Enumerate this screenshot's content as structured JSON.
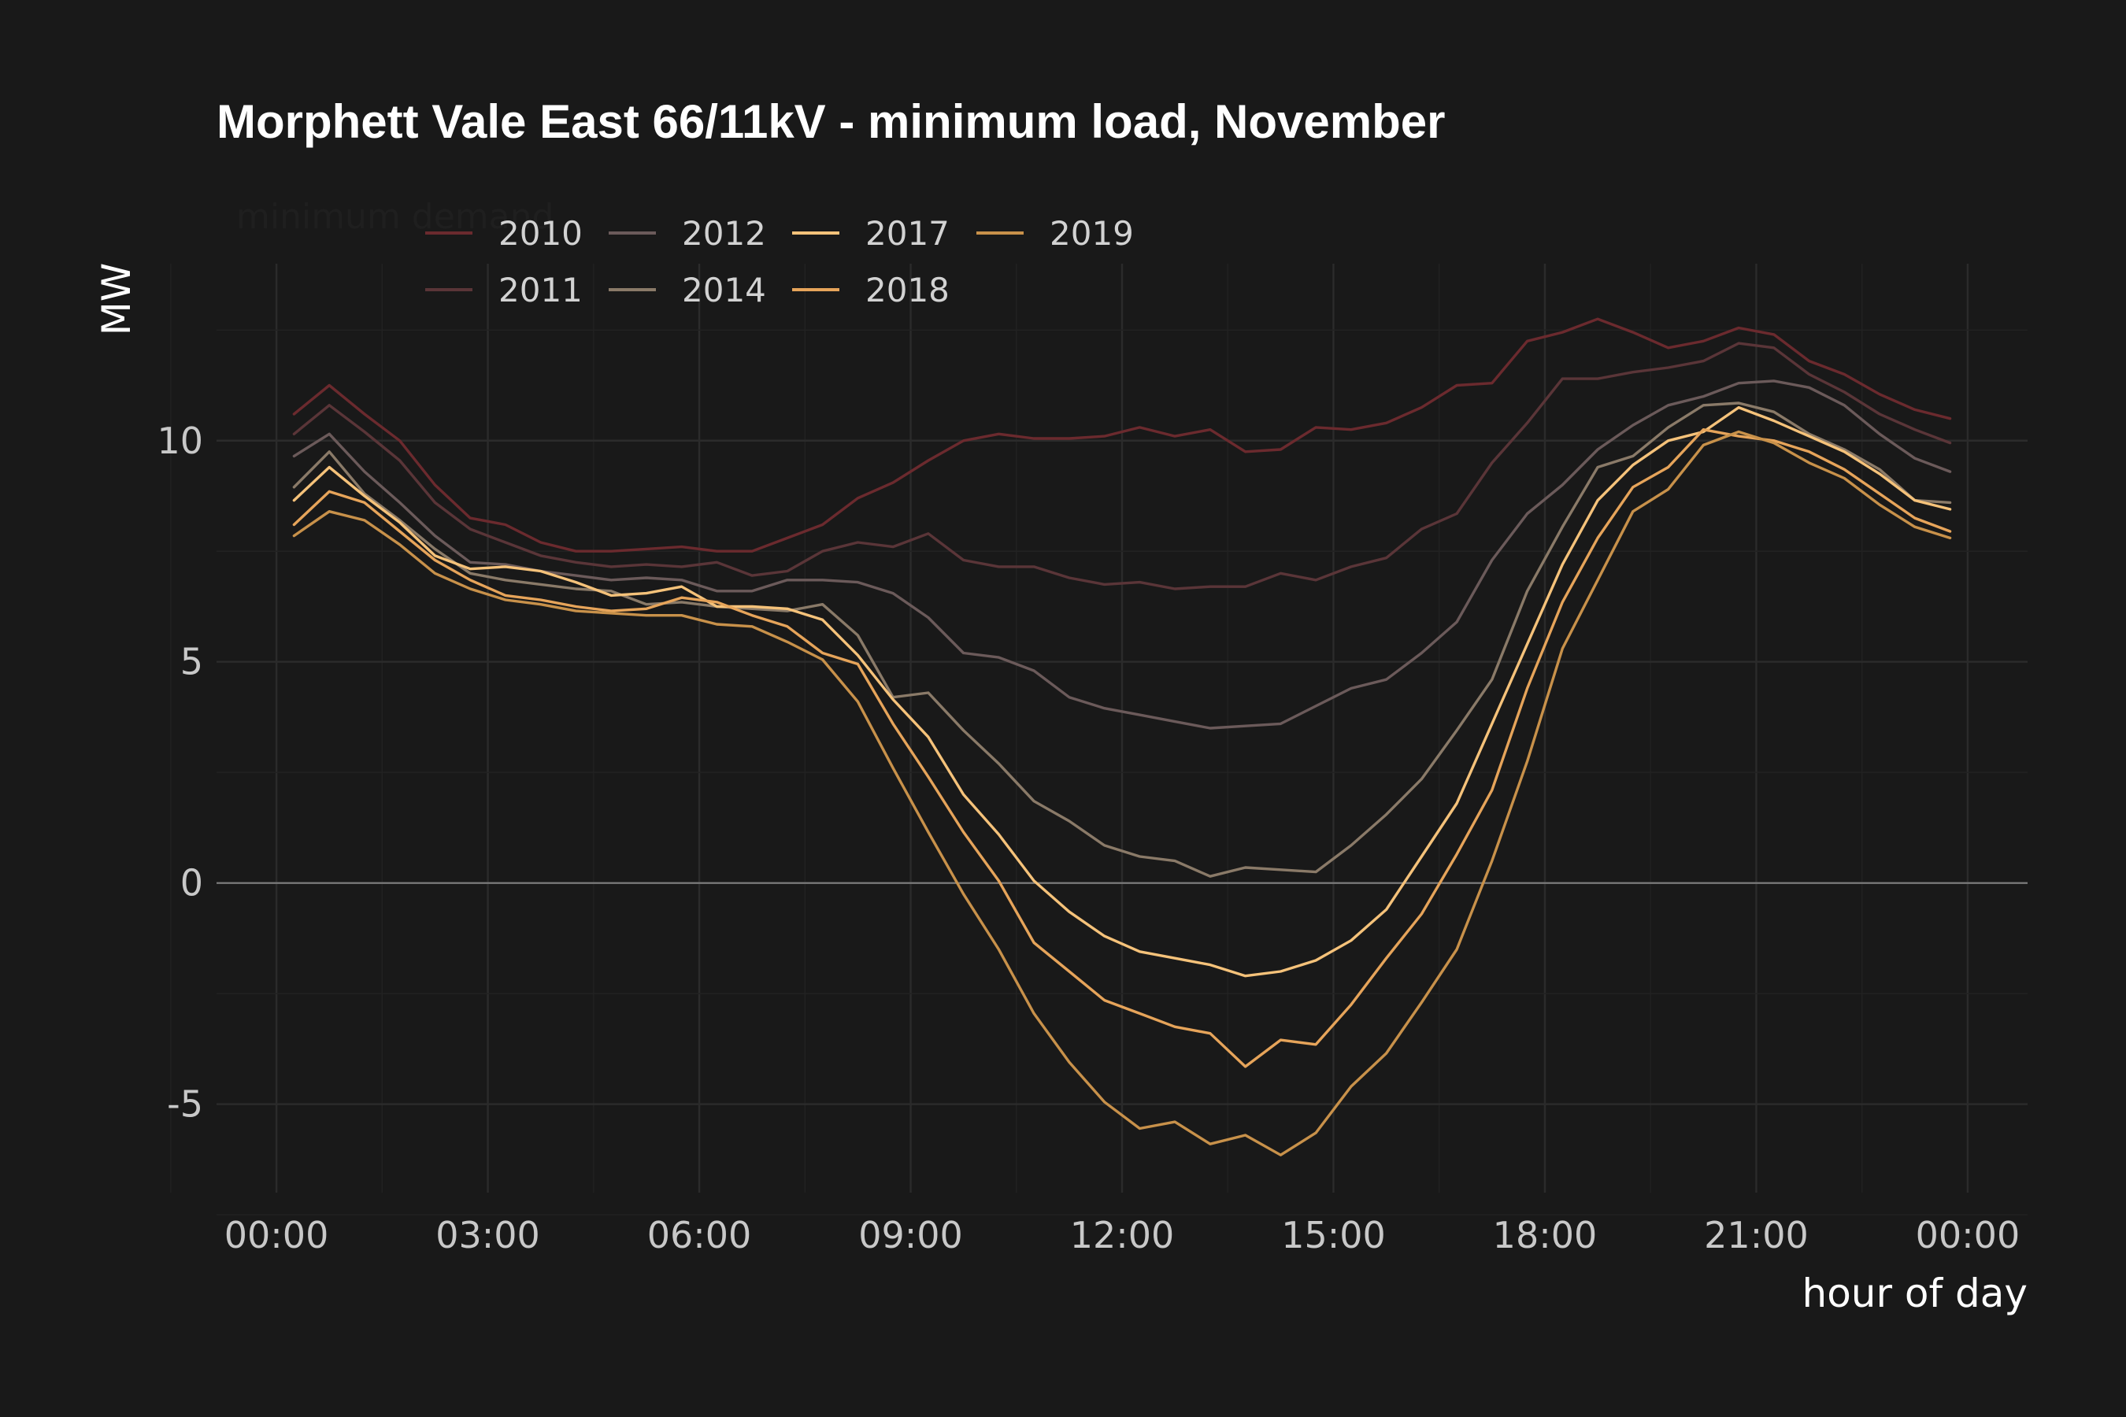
{
  "chart_data": {
    "type": "line",
    "title": "Morphett Vale East 66/11kV - minimum load, November",
    "subtitle": "minimum demand",
    "xlabel": "hour of day",
    "ylabel": "MW",
    "x_ticks": [
      "00:00",
      "03:00",
      "06:00",
      "09:00",
      "12:00",
      "15:00",
      "18:00",
      "21:00",
      "00:00"
    ],
    "y_ticks": [
      -5,
      0,
      5,
      10
    ],
    "xlim": [
      -0.85,
      24.85
    ],
    "ylim": [
      -7,
      14
    ],
    "grid": true,
    "legend_position": "top-left",
    "x": [
      0.25,
      0.75,
      1.25,
      1.75,
      2.25,
      2.75,
      3.25,
      3.75,
      4.25,
      4.75,
      5.25,
      5.75,
      6.25,
      6.75,
      7.25,
      7.75,
      8.25,
      8.75,
      9.25,
      9.75,
      10.25,
      10.75,
      11.25,
      11.75,
      12.25,
      12.75,
      13.25,
      13.75,
      14.25,
      14.75,
      15.25,
      15.75,
      16.25,
      16.75,
      17.25,
      17.75,
      18.25,
      18.75,
      19.25,
      19.75,
      20.25,
      20.75,
      21.25,
      21.75,
      22.25,
      22.75,
      23.25,
      23.75
    ],
    "series": [
      {
        "name": "2010",
        "color": "#6b2a2e",
        "values": [
          10.6,
          11.25,
          10.6,
          10.0,
          9.0,
          8.25,
          8.1,
          7.7,
          7.5,
          7.5,
          7.55,
          7.6,
          7.5,
          7.5,
          7.8,
          8.1,
          8.7,
          9.05,
          9.55,
          10.0,
          10.15,
          10.05,
          10.05,
          10.1,
          10.3,
          10.1,
          10.25,
          9.75,
          9.8,
          10.3,
          10.25,
          10.4,
          10.75,
          11.25,
          11.3,
          12.25,
          12.45,
          12.75,
          12.45,
          12.1,
          12.25,
          12.55,
          12.4,
          11.8,
          11.5,
          11.05,
          10.7,
          10.5
        ]
      },
      {
        "name": "2011",
        "color": "#5a3538",
        "values": [
          10.15,
          10.8,
          10.2,
          9.55,
          8.6,
          8.0,
          7.7,
          7.4,
          7.25,
          7.15,
          7.2,
          7.15,
          7.25,
          6.95,
          7.05,
          7.5,
          7.7,
          7.6,
          7.9,
          7.3,
          7.15,
          7.15,
          6.9,
          6.75,
          6.8,
          6.65,
          6.7,
          6.7,
          7.0,
          6.85,
          7.15,
          7.35,
          8.0,
          8.35,
          9.5,
          10.4,
          11.4,
          11.4,
          11.55,
          11.65,
          11.8,
          12.2,
          12.1,
          11.5,
          11.1,
          10.6,
          10.25,
          9.95
        ]
      },
      {
        "name": "2012",
        "color": "#6b5a5a",
        "values": [
          9.65,
          10.15,
          9.3,
          8.6,
          7.85,
          7.25,
          7.2,
          7.05,
          6.95,
          6.85,
          6.9,
          6.85,
          6.6,
          6.6,
          6.85,
          6.85,
          6.8,
          6.55,
          6.0,
          5.2,
          5.1,
          4.8,
          4.2,
          3.95,
          3.8,
          3.65,
          3.5,
          3.55,
          3.6,
          4.0,
          4.4,
          4.6,
          5.2,
          5.9,
          7.3,
          8.35,
          9.0,
          9.8,
          10.35,
          10.8,
          11.0,
          11.3,
          11.35,
          11.2,
          10.8,
          10.15,
          9.6,
          9.3
        ]
      },
      {
        "name": "2014",
        "color": "#8a7a68",
        "values": [
          8.95,
          9.75,
          8.8,
          8.2,
          7.55,
          7.0,
          6.85,
          6.75,
          6.65,
          6.6,
          6.3,
          6.35,
          6.25,
          6.2,
          6.15,
          6.3,
          5.6,
          4.2,
          4.3,
          3.45,
          2.7,
          1.85,
          1.4,
          0.85,
          0.6,
          0.5,
          0.15,
          0.35,
          0.3,
          0.25,
          0.85,
          1.55,
          2.35,
          3.45,
          4.6,
          6.6,
          8.05,
          9.4,
          9.65,
          10.3,
          10.8,
          10.85,
          10.65,
          10.15,
          9.8,
          9.35,
          8.65,
          8.6
        ]
      },
      {
        "name": "2017",
        "color": "#f5c27a",
        "values": [
          8.65,
          9.4,
          8.75,
          8.15,
          7.4,
          7.1,
          7.15,
          7.05,
          6.8,
          6.5,
          6.55,
          6.7,
          6.25,
          6.25,
          6.2,
          5.95,
          5.15,
          4.15,
          3.3,
          2.0,
          1.1,
          0.05,
          -0.65,
          -1.2,
          -1.55,
          -1.7,
          -1.85,
          -2.1,
          -2.0,
          -1.75,
          -1.3,
          -0.6,
          0.6,
          1.8,
          3.6,
          5.4,
          7.2,
          8.65,
          9.45,
          10.0,
          10.2,
          10.75,
          10.45,
          10.1,
          9.75,
          9.25,
          8.65,
          8.45
        ]
      },
      {
        "name": "2018",
        "color": "#e6a45a",
        "values": [
          8.1,
          8.85,
          8.6,
          7.95,
          7.3,
          6.85,
          6.5,
          6.4,
          6.25,
          6.15,
          6.2,
          6.45,
          6.35,
          6.05,
          5.8,
          5.2,
          4.95,
          3.6,
          2.4,
          1.15,
          0.05,
          -1.35,
          -2.0,
          -2.65,
          -2.95,
          -3.25,
          -3.4,
          -4.15,
          -3.55,
          -3.65,
          -2.75,
          -1.7,
          -0.7,
          0.65,
          2.1,
          4.4,
          6.35,
          7.8,
          8.95,
          9.4,
          10.25,
          10.1,
          10.0,
          9.75,
          9.35,
          8.8,
          8.25,
          7.95
        ]
      },
      {
        "name": "2019",
        "color": "#c8914a",
        "values": [
          7.85,
          8.4,
          8.2,
          7.65,
          7.0,
          6.65,
          6.4,
          6.3,
          6.15,
          6.1,
          6.05,
          6.05,
          5.85,
          5.8,
          5.45,
          5.05,
          4.1,
          2.6,
          1.15,
          -0.25,
          -1.5,
          -2.95,
          -4.05,
          -4.95,
          -5.55,
          -5.4,
          -5.9,
          -5.7,
          -6.15,
          -5.65,
          -4.6,
          -3.85,
          -2.7,
          -1.5,
          0.5,
          2.75,
          5.3,
          6.85,
          8.4,
          8.9,
          9.9,
          10.2,
          9.95,
          9.5,
          9.15,
          8.55,
          8.05,
          7.8
        ]
      }
    ]
  }
}
